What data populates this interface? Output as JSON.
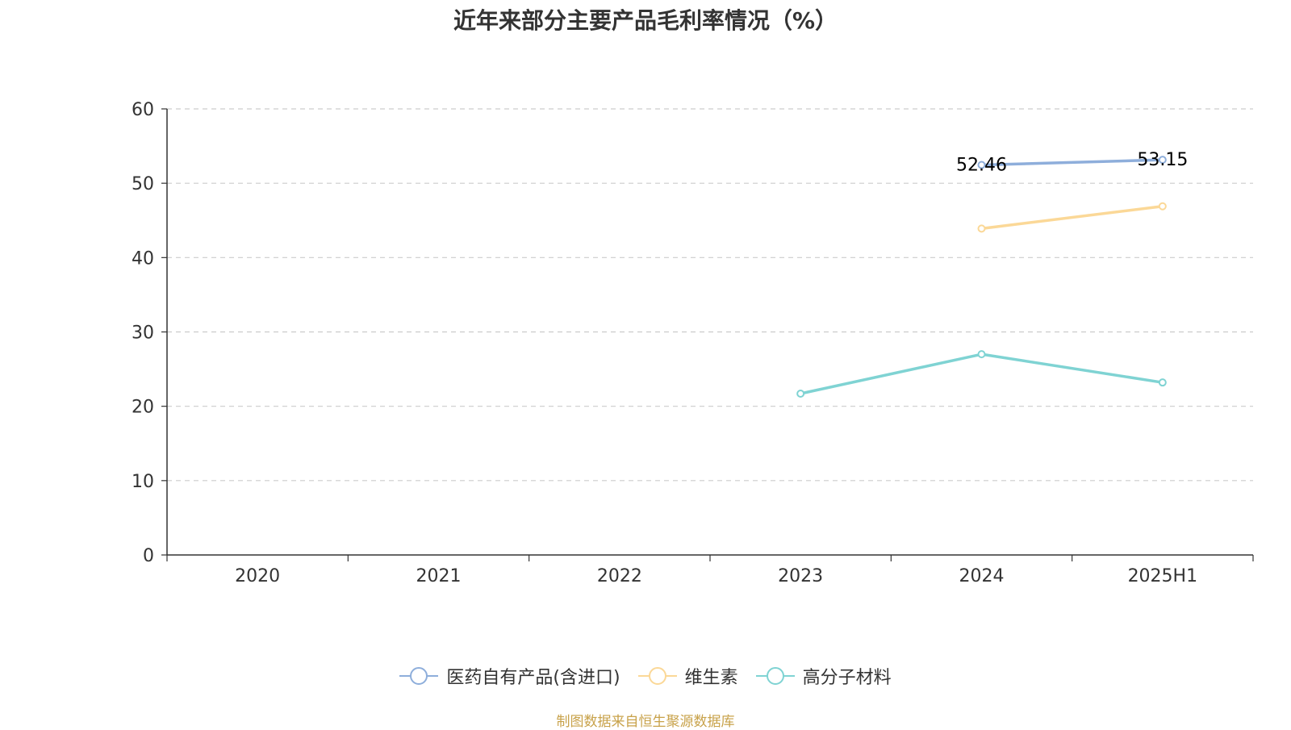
{
  "chart_data": {
    "type": "line",
    "title": "近年来部分主要产品毛利率情况（%）",
    "categories": [
      "2020",
      "2021",
      "2022",
      "2023",
      "2024",
      "2025H1"
    ],
    "ylim": [
      0,
      60
    ],
    "yticks": [
      0,
      10,
      20,
      30,
      40,
      50,
      60
    ],
    "grid": true,
    "legend_position": "bottom",
    "series": [
      {
        "name": "医药自有产品(含进口)",
        "color": "#8eaedb",
        "values": [
          null,
          null,
          null,
          null,
          52.46,
          53.15
        ],
        "labels": [
          null,
          null,
          null,
          null,
          "52.46",
          "53.15"
        ]
      },
      {
        "name": "维生素",
        "color": "#fbd897",
        "values": [
          null,
          null,
          null,
          null,
          43.9,
          46.9
        ],
        "labels": [
          null,
          null,
          null,
          null,
          null,
          null
        ]
      },
      {
        "name": "高分子材料",
        "color": "#7fd3d3",
        "values": [
          null,
          null,
          null,
          21.7,
          27.0,
          23.2
        ],
        "labels": [
          null,
          null,
          null,
          null,
          null,
          null
        ]
      }
    ]
  },
  "source_note": "制图数据来自恒生聚源数据库"
}
